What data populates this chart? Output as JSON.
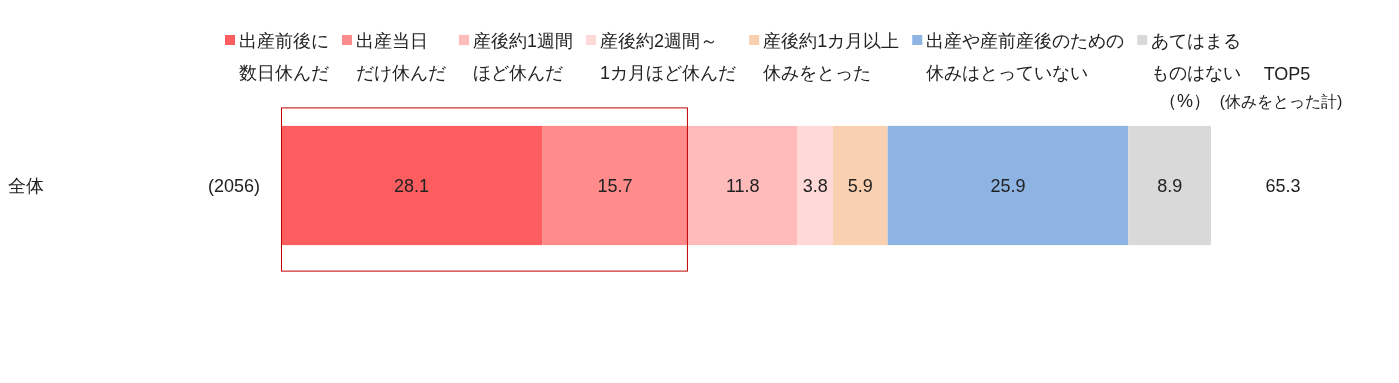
{
  "chart_data": {
    "type": "bar",
    "orientation": "horizontal",
    "stacked": true,
    "categories": [
      "全体"
    ],
    "series": [
      {
        "name": "出産前後に数日休んだ",
        "color": "#fe5d5f",
        "values": [
          28.1
        ]
      },
      {
        "name": "出産当日だけ休んだ",
        "color": "#ff8b8b",
        "values": [
          15.7
        ]
      },
      {
        "name": "産後約1週間ほど休んだ",
        "color": "#ffbaba",
        "values": [
          11.8
        ]
      },
      {
        "name": "産後約2週間～1カ月ほど休んだ",
        "color": "#ffd8d8",
        "values": [
          3.8
        ]
      },
      {
        "name": "産後約1カ月以上休みをとった",
        "color": "#f9d1b0",
        "values": [
          5.9
        ]
      },
      {
        "name": "出産や産前産後のための休みはとっていない",
        "color": "#8eb4e3",
        "values": [
          25.9
        ]
      },
      {
        "name": "あてはまるものはない",
        "color": "#d9d9d9",
        "values": [
          8.9
        ]
      }
    ],
    "data_labels": true,
    "legend": "top",
    "tick_labels": "y",
    "annotations": [
      "(2056)",
      "（%）",
      "TOP5",
      "(休みをとった計)",
      "65.3"
    ]
  }
}
